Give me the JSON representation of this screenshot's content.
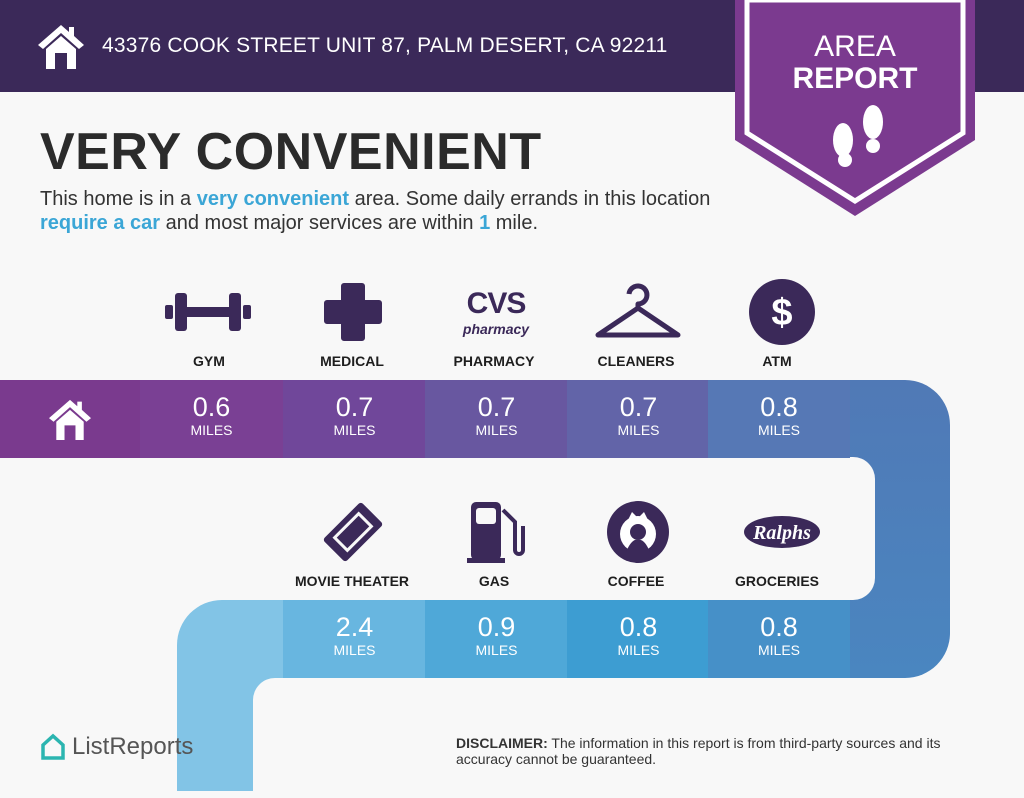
{
  "header": {
    "address": "43376 COOK STREET UNIT 87, PALM DESERT, CA 92211",
    "badge_line1": "AREA",
    "badge_line2": "REPORT"
  },
  "summary": {
    "title": "VERY CONVENIENT",
    "d1": "This home is in a ",
    "d2": "very convenient",
    "d3": " area. Some daily errands in this location ",
    "d4": "require a car",
    "d5": " and most major services are within ",
    "d6": "1",
    "d7": " mile."
  },
  "amenities": [
    {
      "label": "GYM",
      "distance": "0.6",
      "unit": "MILES",
      "icon": "dumbbell-icon"
    },
    {
      "label": "MEDICAL",
      "distance": "0.7",
      "unit": "MILES",
      "icon": "medical-cross-icon"
    },
    {
      "label": "PHARMACY",
      "distance": "0.7",
      "unit": "MILES",
      "icon": "cvs-pharmacy-logo",
      "logo_text": "CVS",
      "logo_sub": "pharmacy"
    },
    {
      "label": "CLEANERS",
      "distance": "0.7",
      "unit": "MILES",
      "icon": "hanger-icon"
    },
    {
      "label": "ATM",
      "distance": "0.8",
      "unit": "MILES",
      "icon": "dollar-icon"
    },
    {
      "label": "MOVIE THEATER",
      "distance": "2.4",
      "unit": "MILES",
      "icon": "ticket-icon"
    },
    {
      "label": "GAS",
      "distance": "0.9",
      "unit": "MILES",
      "icon": "gas-pump-icon"
    },
    {
      "label": "COFFEE",
      "distance": "0.8",
      "unit": "MILES",
      "icon": "starbucks-logo"
    },
    {
      "label": "GROCERIES",
      "distance": "0.8",
      "unit": "MILES",
      "icon": "ralphs-logo",
      "logo_text": "Ralphs"
    }
  ],
  "footer": {
    "brand": "ListReports",
    "disclaimer_label": "DISCLAIMER:",
    "disclaimer": " The information in this report is from third-party sources and its accuracy cannot be guaranteed."
  },
  "colors": {
    "header": "#3b2959",
    "badge": "#7b3a8f",
    "accent": "#3ba6d6",
    "icon": "#3b2959"
  }
}
